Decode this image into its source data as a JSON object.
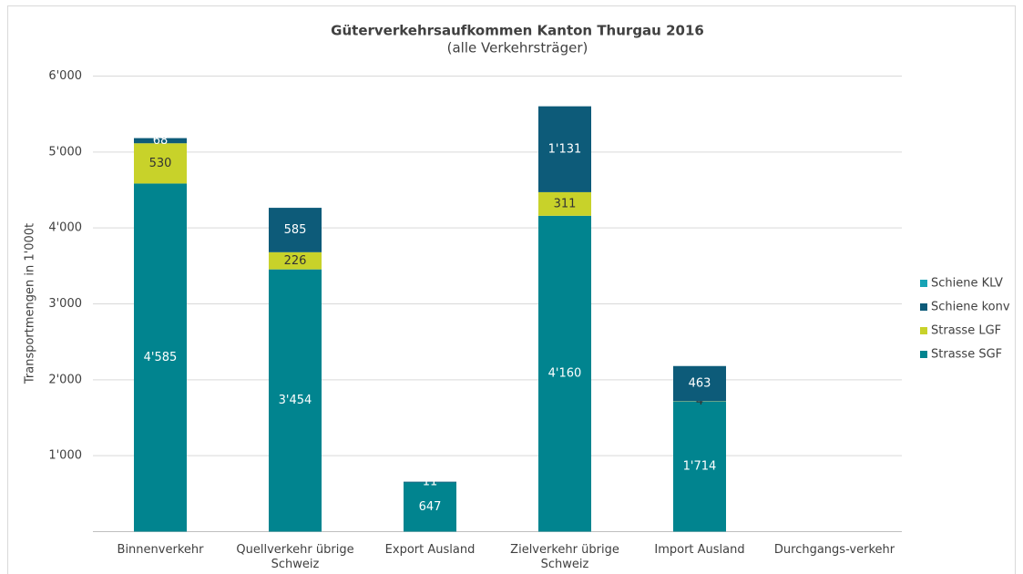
{
  "chart_data": {
    "type": "stacked_bar",
    "title": "Güterverkehrsaufkommen Kanton Thurgau 2016",
    "subtitle": "(alle Verkehrsträger)",
    "y_label": "Transportmengen in 1'000t",
    "categories": [
      "Binnenverkehr",
      "Quellverkehr übrige Schweiz",
      "Export Ausland",
      "Zielverkehr übrige Schweiz",
      "Import Ausland",
      "Durchgangs-verkehr"
    ],
    "series": [
      {
        "name": "Strasse SGF",
        "color": "#01848f",
        "label_color": "#ffffff",
        "values": [
          4585,
          3454,
          647,
          4160,
          1714,
          null
        ],
        "value_labels": [
          "4'585",
          "3'454",
          "647",
          "4'160",
          "1'714",
          null
        ]
      },
      {
        "name": "Strasse LGF",
        "color": "#c8d22a",
        "label_color": "#333333",
        "values": [
          530,
          226,
          null,
          311,
          4,
          null
        ],
        "value_labels": [
          null,
          null,
          null,
          null,
          null,
          null
        ]
      },
      {
        "name": "Schiene konv",
        "color": "#0d5b79",
        "label_color": "#ffffff",
        "values": [
          68,
          585,
          11,
          1131,
          463,
          null
        ],
        "value_labels": [
          null,
          null,
          null,
          "1'131",
          null,
          null
        ]
      },
      {
        "name": "Schiene KLV",
        "color": "#17a3b5",
        "label_color": "#ffffff",
        "values": [
          null,
          null,
          null,
          null,
          null,
          null
        ],
        "value_labels": [
          null,
          null,
          null,
          null,
          null,
          null
        ]
      }
    ],
    "ylim": [
      0,
      6000
    ],
    "yticks": [
      {
        "value": 1000,
        "label": "1'000"
      },
      {
        "value": 2000,
        "label": "2'000"
      },
      {
        "value": 3000,
        "label": "3'000"
      },
      {
        "value": 4000,
        "label": "4'000"
      },
      {
        "value": 5000,
        "label": "5'000"
      },
      {
        "value": 6000,
        "label": "6'000"
      }
    ],
    "grid": true,
    "legend": "right"
  }
}
